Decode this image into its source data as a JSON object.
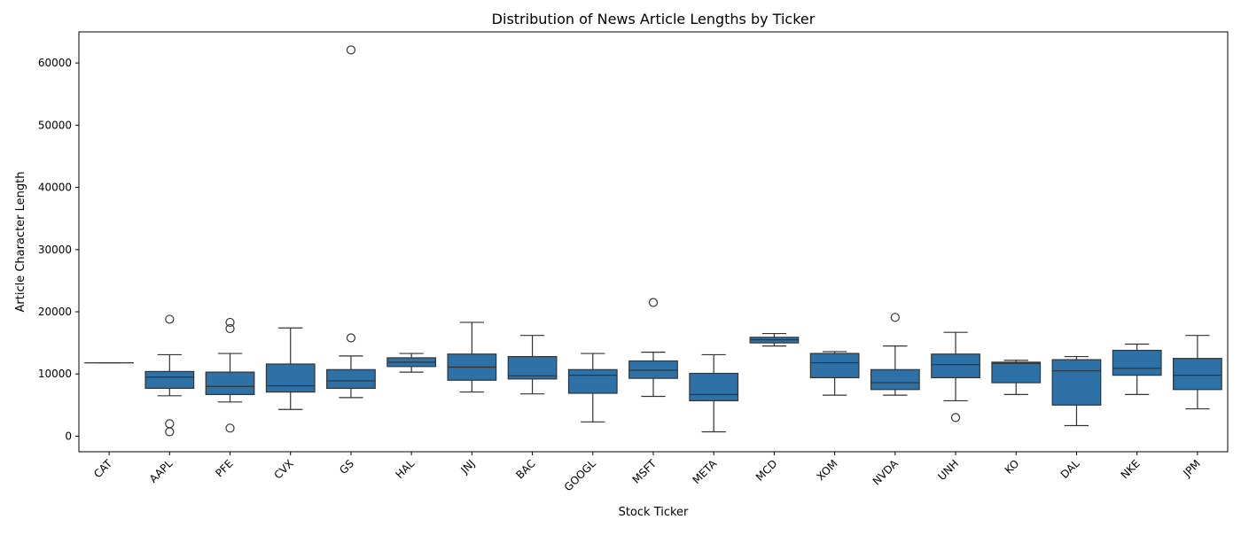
{
  "chart_data": {
    "type": "box",
    "title": "Distribution of News Article Lengths by Ticker",
    "xlabel": "Stock Ticker",
    "ylabel": "Article Character Length",
    "ylim": [
      -2500,
      65000
    ],
    "yticks": [
      0,
      10000,
      20000,
      30000,
      40000,
      50000,
      60000
    ],
    "grid": false,
    "legend": "none",
    "box_color": "#2e71a7",
    "line_color": "#333333",
    "categories": [
      "CAT",
      "AAPL",
      "PFE",
      "CVX",
      "GS",
      "HAL",
      "JNJ",
      "BAC",
      "GOOGL",
      "MSFT",
      "META",
      "MCD",
      "XOM",
      "NVDA",
      "UNH",
      "KO",
      "DAL",
      "NKE",
      "JPM"
    ],
    "boxes": [
      {
        "label": "CAT",
        "min": 11800,
        "q1": 11800,
        "median": 11800,
        "q3": 11800,
        "max": 11800,
        "outliers": []
      },
      {
        "label": "AAPL",
        "min": 6500,
        "q1": 7700,
        "median": 9500,
        "q3": 10400,
        "max": 13100,
        "outliers": [
          18800,
          2000,
          700
        ]
      },
      {
        "label": "PFE",
        "min": 5500,
        "q1": 6700,
        "median": 8000,
        "q3": 10300,
        "max": 13300,
        "outliers": [
          18300,
          17300,
          1300
        ]
      },
      {
        "label": "CVX",
        "min": 4300,
        "q1": 7100,
        "median": 8100,
        "q3": 11600,
        "max": 17400,
        "outliers": []
      },
      {
        "label": "GS",
        "min": 6200,
        "q1": 7700,
        "median": 8900,
        "q3": 10700,
        "max": 12900,
        "outliers": [
          62100,
          15800
        ]
      },
      {
        "label": "HAL",
        "min": 10300,
        "q1": 11200,
        "median": 11900,
        "q3": 12600,
        "max": 13300,
        "outliers": []
      },
      {
        "label": "JNJ",
        "min": 7100,
        "q1": 9000,
        "median": 11100,
        "q3": 13200,
        "max": 18300,
        "outliers": []
      },
      {
        "label": "BAC",
        "min": 6800,
        "q1": 9200,
        "median": 9700,
        "q3": 12800,
        "max": 16200,
        "outliers": []
      },
      {
        "label": "GOOGL",
        "min": 2300,
        "q1": 6900,
        "median": 9800,
        "q3": 10700,
        "max": 13300,
        "outliers": []
      },
      {
        "label": "MSFT",
        "min": 6400,
        "q1": 9300,
        "median": 10600,
        "q3": 12100,
        "max": 13500,
        "outliers": [
          21500
        ]
      },
      {
        "label": "META",
        "min": 700,
        "q1": 5700,
        "median": 6700,
        "q3": 10100,
        "max": 13100,
        "outliers": []
      },
      {
        "label": "MCD",
        "min": 14500,
        "q1": 15000,
        "median": 15500,
        "q3": 15900,
        "max": 16500,
        "outliers": []
      },
      {
        "label": "XOM",
        "min": 6600,
        "q1": 9400,
        "median": 11800,
        "q3": 13300,
        "max": 13600,
        "outliers": []
      },
      {
        "label": "NVDA",
        "min": 6600,
        "q1": 7500,
        "median": 8600,
        "q3": 10700,
        "max": 14500,
        "outliers": [
          19100
        ]
      },
      {
        "label": "UNH",
        "min": 5700,
        "q1": 9400,
        "median": 11500,
        "q3": 13200,
        "max": 16700,
        "outliers": [
          3000
        ]
      },
      {
        "label": "KO",
        "min": 6700,
        "q1": 8600,
        "median": 11700,
        "q3": 11900,
        "max": 12200,
        "outliers": []
      },
      {
        "label": "DAL",
        "min": 1700,
        "q1": 5000,
        "median": 10500,
        "q3": 12300,
        "max": 12800,
        "outliers": []
      },
      {
        "label": "NKE",
        "min": 6700,
        "q1": 9800,
        "median": 10900,
        "q3": 13800,
        "max": 14800,
        "outliers": []
      },
      {
        "label": "JPM",
        "min": 4400,
        "q1": 7500,
        "median": 9800,
        "q3": 12500,
        "max": 16200,
        "outliers": []
      }
    ]
  }
}
